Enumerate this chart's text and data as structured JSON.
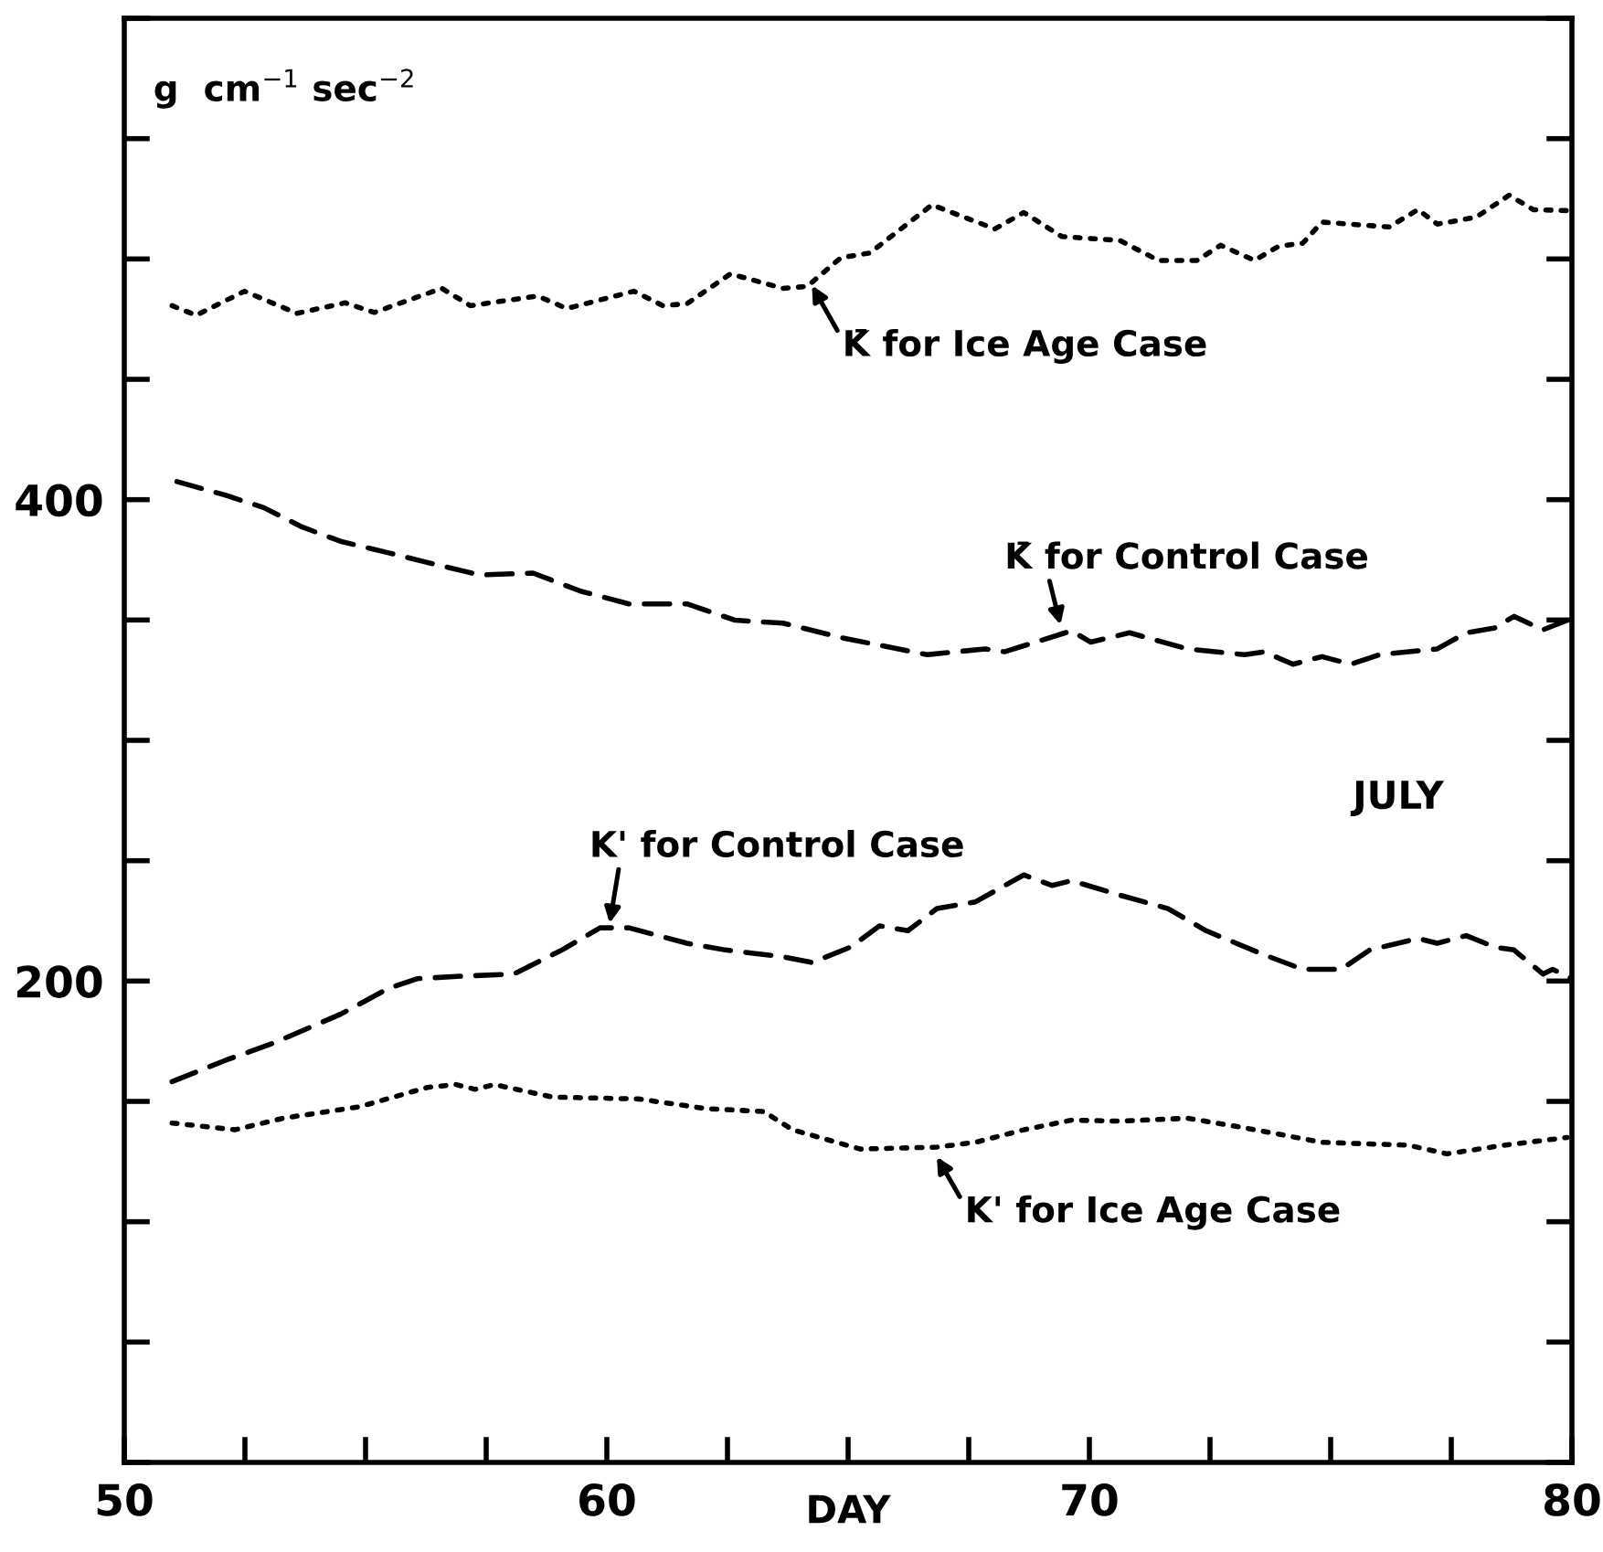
{
  "chart_data": {
    "type": "line",
    "xlabel": "DAY",
    "ylabel": "g  cm$^{−1}$ sec$^{−2}$",
    "xlim": [
      50,
      80
    ],
    "ylim": [
      0,
      600
    ],
    "xticks": [
      50,
      {
        "value": 52.5,
        "label": null
      },
      {
        "value": 55,
        "label": null
      },
      {
        "value": 57.5,
        "label": null
      },
      60,
      {
        "value": 62.5,
        "label": null
      },
      {
        "value": 65,
        "label": null
      },
      {
        "value": 67.5,
        "label": null
      },
      70,
      {
        "value": 72.5,
        "label": null
      },
      {
        "value": 75,
        "label": null
      },
      {
        "value": 77.5,
        "label": null
      },
      80
    ],
    "yticks": [
      {
        "value": 0,
        "label": null
      },
      {
        "value": 50,
        "label": null
      },
      {
        "value": 100,
        "label": null
      },
      {
        "value": 150,
        "label": null
      },
      200,
      {
        "value": 250,
        "label": null
      },
      {
        "value": 300,
        "label": null
      },
      {
        "value": 350,
        "label": null
      },
      400,
      {
        "value": 450,
        "label": null
      },
      {
        "value": 500,
        "label": null
      },
      {
        "value": 550,
        "label": null
      },
      {
        "value": 600,
        "label": null
      }
    ],
    "grid": false,
    "legend": false,
    "marker": "none",
    "series": [
      {
        "color": "#000000",
        "line_style": "dotted",
        "x": [
          50.99,
          51.49,
          52.49,
          53.58,
          54.58,
          55.18,
          56.58,
          57.17,
          58.57,
          59.17,
          60.56,
          61.16,
          61.66,
          62.56,
          63.65,
          64.15,
          64.85,
          65.45,
          66.74,
          68.04,
          68.64,
          69.43,
          70.63,
          71.43,
          72.23,
          72.72,
          73.42,
          73.92,
          74.42,
          74.82,
          76.21,
          76.81,
          77.21,
          78.01,
          78.7,
          79.2,
          79.9
        ],
        "values": [
          480.6,
          476.6,
          486.6,
          477.4,
          481.8,
          477.8,
          487.8,
          480.6,
          484.6,
          479.4,
          486.6,
          480.6,
          481.4,
          493.8,
          487.8,
          488.6,
          500.5,
          502.5,
          522.5,
          512.5,
          519.3,
          509.3,
          507.7,
          499.4,
          499.4,
          505.7,
          499.4,
          505.3,
          506.5,
          515.3,
          513.3,
          520.5,
          514.5,
          517.3,
          526.5,
          520.5,
          520.1
        ]
      },
      {
        "color": "#000000",
        "line_style": "dashed",
        "x": [
          51.09,
          52.09,
          52.89,
          53.68,
          54.48,
          55.48,
          56.28,
          57.37,
          58.47,
          59.47,
          60.46,
          61.66,
          62.66,
          63.65,
          64.85,
          66.64,
          67.84,
          68.24,
          69.63,
          70.03,
          70.83,
          72.03,
          73.22,
          73.62,
          74.22,
          74.82,
          75.42,
          76.01,
          77.21,
          77.81,
          78.4,
          78.8,
          79.4,
          79.9
        ],
        "values": [
          407.5,
          401.9,
          396.7,
          388.7,
          382.7,
          377.9,
          373.9,
          368.7,
          369.5,
          361.9,
          356.7,
          356.7,
          349.9,
          348.7,
          342.7,
          335.6,
          338.0,
          336.8,
          345.5,
          340.8,
          344.7,
          338.0,
          335.6,
          336.8,
          331.6,
          334.8,
          331.6,
          335.6,
          338.0,
          344.7,
          346.7,
          351.5,
          345.9,
          349.9
        ]
      },
      {
        "color": "#000000",
        "line_style": "dashed",
        "x": [
          50.99,
          52.09,
          53.09,
          54.48,
          55.48,
          56.08,
          57.07,
          58.07,
          59.07,
          59.86,
          60.46,
          61.66,
          62.46,
          63.65,
          64.25,
          65.05,
          65.65,
          66.24,
          66.84,
          67.64,
          68.64,
          69.23,
          69.63,
          70.63,
          71.63,
          72.42,
          73.62,
          74.42,
          75.22,
          75.81,
          76.81,
          77.21,
          77.81,
          78.4,
          78.8,
          79.4,
          79.6,
          80.0
        ],
        "values": [
          158.2,
          167.0,
          174.2,
          186.2,
          197.0,
          201.0,
          202.1,
          202.9,
          212.9,
          222.1,
          222.1,
          215.7,
          212.9,
          210.1,
          207.7,
          214.1,
          222.9,
          220.9,
          230.1,
          232.9,
          244.1,
          239.7,
          241.7,
          235.7,
          230.1,
          220.9,
          210.9,
          204.9,
          204.9,
          212.9,
          217.7,
          215.7,
          218.9,
          214.1,
          212.9,
          202.9,
          204.9,
          201.0
        ]
      },
      {
        "color": "#000000",
        "line_style": "dotted",
        "x": [
          50.99,
          52.29,
          53.29,
          54.88,
          56.28,
          56.87,
          57.27,
          57.67,
          58.87,
          60.66,
          62.06,
          63.25,
          63.85,
          65.25,
          66.84,
          67.64,
          68.64,
          69.63,
          70.63,
          72.03,
          73.22,
          74.82,
          76.61,
          77.41,
          78.6,
          79.9
        ],
        "values": [
          141.0,
          138.2,
          143.0,
          147.8,
          155.8,
          157.0,
          155.0,
          157.0,
          151.8,
          151.0,
          147.0,
          145.8,
          138.2,
          130.2,
          131.0,
          133.0,
          138.2,
          142.2,
          141.8,
          143.0,
          139.0,
          133.0,
          131.8,
          128.2,
          131.8,
          135.0
        ]
      }
    ],
    "annotations": [
      {
        "text": "K̄ for Ice Age Case",
        "x": 64.25,
        "y": 489
      },
      {
        "text": "K̄ for Control Case",
        "x": 69.4,
        "y": 348
      },
      {
        "text": "K' for Control Case",
        "x": 60.06,
        "y": 224
      },
      {
        "text": "K' for Ice Age Case",
        "x": 66.84,
        "y": 127
      },
      "JULY"
    ]
  }
}
